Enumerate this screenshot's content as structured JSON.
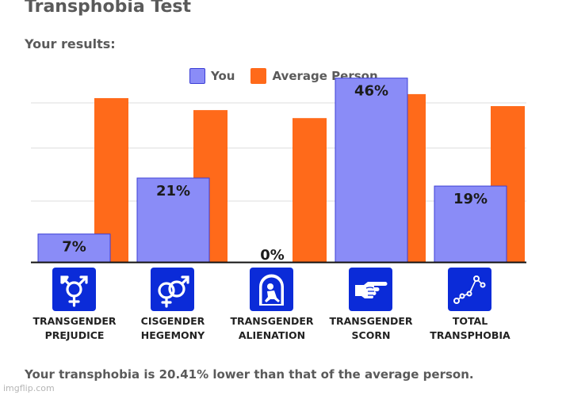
{
  "title": "Transphobia Test",
  "subtitle": "Your results:",
  "summary": "Your transphobia is 20.41% lower than that of the average person.",
  "watermark": "imgflip.com",
  "colors": {
    "you": "#8a8cf7",
    "you_edge": "#3c3fd6",
    "average": "#ff6a1a",
    "icon_bg": "#0b2bd8"
  },
  "chart_data": {
    "type": "bar",
    "categories": [
      "TRANSGENDER PREJUDICE",
      "CISGENDER HEGEMONY",
      "TRANSGENDER ALIENATION",
      "TRANSGENDER SCORN",
      "TOTAL TRANSPHOBIA"
    ],
    "category_lines": [
      [
        "TRANSGENDER",
        "PREJUDICE"
      ],
      [
        "CISGENDER",
        "HEGEMONY"
      ],
      [
        "TRANSGENDER",
        "ALIENATION"
      ],
      [
        "TRANSGENDER",
        "SCORN"
      ],
      [
        "TOTAL",
        "TRANSPHOBIA"
      ]
    ],
    "series": [
      {
        "name": "You",
        "values": [
          7,
          21,
          0,
          46,
          19
        ],
        "labels": [
          "7%",
          "21%",
          "0%",
          "46%",
          "19%"
        ]
      },
      {
        "name": "Average Person",
        "values": [
          41,
          38,
          36,
          42,
          39
        ]
      }
    ],
    "ylim": [
      0,
      100
    ],
    "grid": true,
    "legend": "top-center",
    "icons": [
      "transgender-symbol-icon",
      "gender-symbols-icon",
      "alienation-figure-icon",
      "pointing-hand-icon",
      "constellation-icon"
    ]
  }
}
